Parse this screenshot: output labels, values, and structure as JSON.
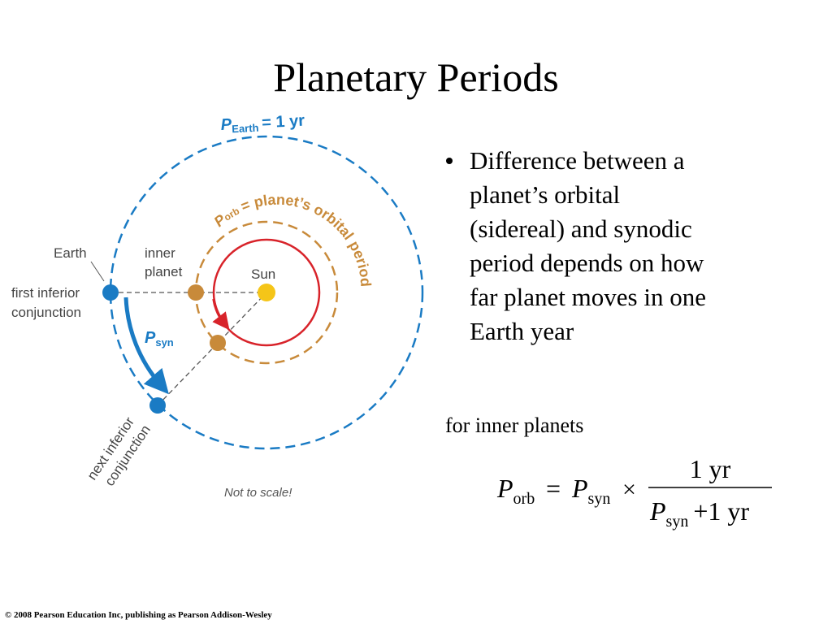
{
  "title": "Planetary Periods",
  "diagram": {
    "earth_orbit_label": {
      "symbol": "P",
      "subscript": "Earth",
      "text": "= 1 yr"
    },
    "planet_orbit_label": {
      "symbol": "P",
      "subscript": "orb",
      "text": "= planet’s orbital period"
    },
    "earth": "Earth",
    "inner_planet": [
      "inner",
      "planet"
    ],
    "sun": "Sun",
    "first_conjunction": [
      "first inferior",
      "conjunction"
    ],
    "synodic_label": {
      "symbol": "P",
      "subscript": "syn"
    },
    "next_conjunction": [
      "next inferior",
      "conjunction"
    ],
    "note": "Not to scale!"
  },
  "bullet": [
    "Difference between a",
    "planet’s orbital",
    "(sidereal) and synodic",
    "period depends on how",
    "far planet moves in one",
    "Earth year"
  ],
  "formula": {
    "caption": "for inner planets",
    "lhs_symbol": "P",
    "lhs_sub": "orb",
    "equals": "=",
    "rhs_symbol": "P",
    "rhs_sub": "syn",
    "times": "×",
    "numerator": "1 yr",
    "den_symbol": "P",
    "den_sub": "syn",
    "plus": "+",
    "den_term": "1 yr"
  },
  "footer": "© 2008 Pearson Education Inc, publishing as Pearson Addison-Wesley"
}
